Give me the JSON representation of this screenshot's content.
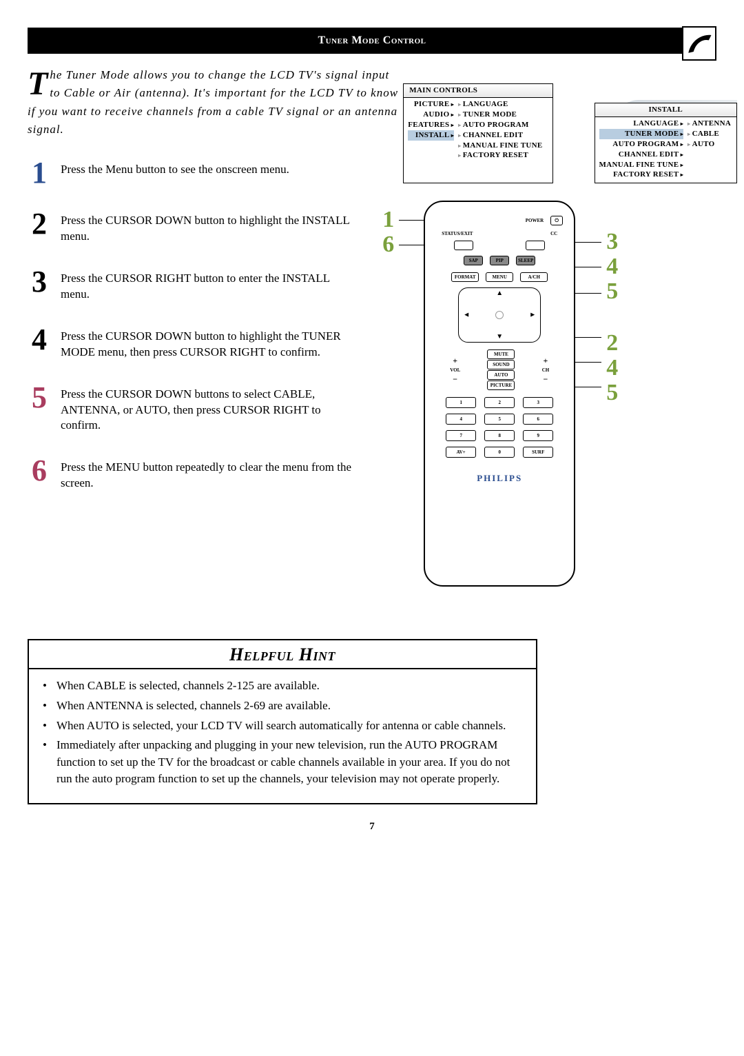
{
  "header": {
    "title": "Tuner Mode Control"
  },
  "intro": {
    "dropcap": "T",
    "text": "he Tuner Mode allows you to change the LCD TV's signal input to Cable or Air (antenna). It's important for the LCD TV to know if you want to receive channels from a cable TV signal or an antenna signal."
  },
  "steps": [
    {
      "num": "1",
      "color": "#2a4d8f",
      "text": "Press the Menu button to see the onscreen menu."
    },
    {
      "num": "2",
      "color": "#000000",
      "text": "Press the CURSOR DOWN button to highlight the INSTALL menu."
    },
    {
      "num": "3",
      "color": "#000000",
      "text": "Press the CURSOR RIGHT button to enter the INSTALL menu."
    },
    {
      "num": "4",
      "color": "#000000",
      "text": "Press the CURSOR DOWN button to highlight the TUNER MODE menu, then press CURSOR RIGHT to confirm."
    },
    {
      "num": "5",
      "color": "#a93d5f",
      "text": "Press the CURSOR DOWN buttons to select CABLE, ANTENNA, or AUTO, then press CURSOR RIGHT to confirm."
    },
    {
      "num": "6",
      "color": "#a93d5f",
      "text": "Press the MENU button repeatedly to clear the menu from the screen."
    }
  ],
  "menu1": {
    "title": "MAIN CONTROLS",
    "left": [
      "PICTURE",
      "AUDIO",
      "FEATURES",
      "INSTALL"
    ],
    "left_hl_index": 3,
    "right": [
      "LANGUAGE",
      "TUNER MODE",
      "AUTO PROGRAM",
      "CHANNEL EDIT",
      "MANUAL FINE TUNE",
      "FACTORY RESET"
    ]
  },
  "menu2": {
    "title": "INSTALL",
    "left": [
      "LANGUAGE",
      "TUNER MODE",
      "AUTO PROGRAM",
      "CHANNEL EDIT",
      "MANUAL FINE TUNE",
      "FACTORY RESET"
    ],
    "left_hl_index": 1,
    "right": [
      "ANTENNA",
      "CABLE",
      "AUTO"
    ]
  },
  "remote": {
    "power": "POWER",
    "status": "STATUS/EXIT",
    "cc": "CC",
    "sap": "SAP",
    "pip": "PIP",
    "sleep": "SLEEP",
    "format": "FORMAT",
    "menu": "MENU",
    "avch": "A/CH",
    "mute": "MUTE",
    "sound": "SOUND",
    "auto": "AUTO",
    "picture": "PICTURE",
    "vol": "VOL",
    "ch": "CH",
    "numbers": [
      "1",
      "2",
      "3",
      "4",
      "5",
      "6",
      "7",
      "8",
      "9",
      "AV+",
      "0",
      "SURF"
    ],
    "brand": "PHILIPS"
  },
  "callouts": {
    "left": [
      "1",
      "6"
    ],
    "right": [
      "3",
      "4",
      "5",
      "2",
      "4",
      "5"
    ]
  },
  "hint": {
    "title": "Helpful Hint",
    "items": [
      "When CABLE is selected, channels 2-125 are available.",
      "When ANTENNA is selected, channels 2-69 are available.",
      "When AUTO is selected, your LCD TV will search automatically for antenna or cable channels.",
      "Immediately after unpacking and plugging in your new television, run the AUTO PROGRAM function to set up the TV for the broadcast or cable channels available in your area. If you do not run the auto program function to set up the channels, your television may not operate properly."
    ]
  },
  "page_number": "7"
}
